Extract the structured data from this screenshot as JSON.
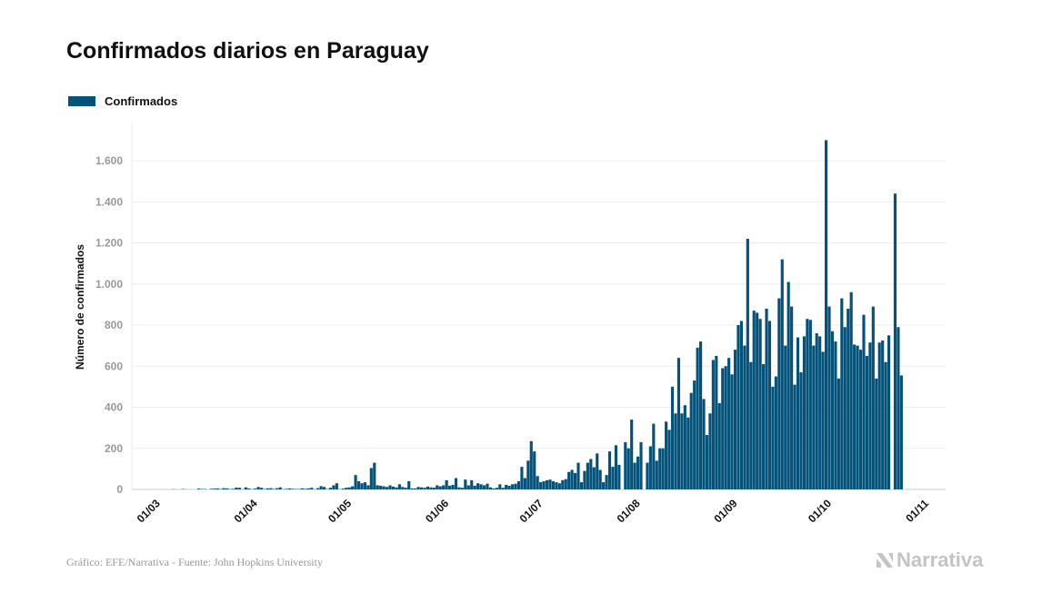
{
  "chart_data": {
    "type": "bar",
    "title": "Confirmados diarios en Paraguay",
    "ylabel": "Número de confirmados",
    "xlabel": "",
    "ylim": [
      0,
      1750
    ],
    "yticks": [
      0,
      200,
      400,
      600,
      800,
      1000,
      1200,
      1400,
      1600
    ],
    "ytick_labels": [
      "0",
      "200",
      "400",
      "600",
      "800",
      "1.000",
      "1.200",
      "1.400",
      "1.600"
    ],
    "xtick_labels": [
      "01/03",
      "01/04",
      "01/05",
      "01/06",
      "01/07",
      "01/08",
      "01/09",
      "01/10",
      "01/11"
    ],
    "grid": "horizontal",
    "legend_position": "top-left",
    "series": [
      {
        "name": "Confirmados",
        "color": "#03527a",
        "days_by_month": [
          {
            "month": "03",
            "values": [
              0,
              0,
              0,
              0,
              0,
              0,
              1,
              0,
              0,
              2,
              0,
              0,
              0,
              0,
              4,
              2,
              2,
              0,
              3,
              4,
              5,
              2,
              6,
              5,
              2,
              3,
              9,
              8,
              1,
              10,
              5
            ]
          },
          {
            "month": "04",
            "values": [
              1,
              4,
              12,
              8,
              2,
              5,
              6,
              2,
              6,
              10,
              1,
              3,
              5,
              3,
              2,
              2,
              5,
              3,
              5,
              8,
              1,
              6,
              16,
              12,
              2,
              8,
              20,
              30,
              1,
              4
            ]
          },
          {
            "month": "05",
            "values": [
              8,
              10,
              15,
              70,
              40,
              30,
              35,
              20,
              104,
              130,
              20,
              18,
              15,
              12,
              20,
              14,
              10,
              25,
              12,
              8,
              40,
              5,
              5,
              12,
              10,
              8,
              14,
              10,
              9,
              20,
              15
            ]
          },
          {
            "month": "06",
            "values": [
              20,
              45,
              18,
              22,
              55,
              10,
              8,
              48,
              20,
              45,
              18,
              30,
              25,
              20,
              28,
              10,
              5,
              8,
              25,
              8,
              22,
              18,
              25,
              28,
              40,
              110,
              55,
              140,
              235,
              185
            ]
          },
          {
            "month": "07",
            "values": [
              65,
              35,
              40,
              45,
              48,
              40,
              35,
              30,
              45,
              50,
              85,
              95,
              80,
              130,
              35,
              90,
              130,
              148,
              108,
              175,
              95,
              35,
              70,
              185,
              110,
              215,
              120,
              0,
              230,
              200,
              340
            ]
          },
          {
            "month": "08",
            "values": [
              130,
              160,
              230,
              0,
              130,
              210,
              320,
              140,
              200,
              200,
              330,
              290,
              500,
              370,
              640,
              370,
              410,
              350,
              470,
              530,
              690,
              720,
              440,
              265,
              370,
              630,
              650,
              420,
              590,
              600,
              640
            ]
          },
          {
            "month": "09",
            "values": [
              560,
              680,
              800,
              820,
              700,
              1220,
              620,
              870,
              860,
              830,
              610,
              880,
              820,
              500,
              550,
              930,
              1120,
              700,
              1010,
              890,
              510,
              740,
              570,
              745,
              830,
              825,
              700,
              760,
              745,
              670
            ]
          },
          {
            "month": "10",
            "values": [
              1700,
              890,
              770,
              720,
              540,
              930,
              790,
              880,
              960,
              705,
              700,
              680,
              850,
              650,
              715,
              890,
              540,
              715,
              725,
              620,
              750,
              0,
              1440,
              790,
              555
            ]
          }
        ]
      }
    ]
  },
  "footer": "Gráfico: EFE/Narrativa - Fuente: John Hopkins University",
  "logo_text": "Narrativa"
}
